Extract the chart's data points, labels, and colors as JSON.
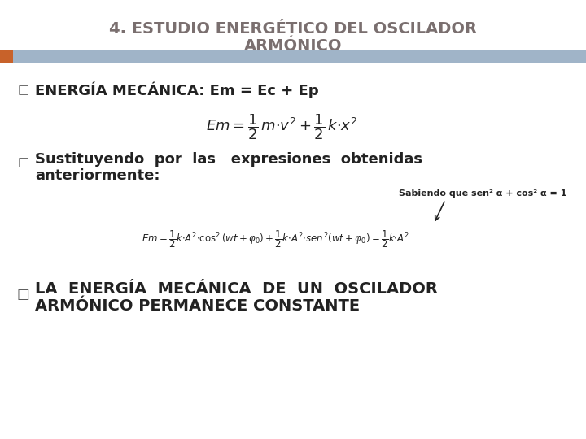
{
  "bg_color": "#ffffff",
  "title_line1": "4. ESTUDIO ENERGÉTICO DEL OSCILADOR",
  "title_line2": "ARMÓNICO",
  "title_color": "#7a6f6f",
  "title_fontsize": 14,
  "separator_bar_color": "#a0b4c8",
  "separator_bar_left_color": "#c8622a",
  "bullet_color": "#555555",
  "bullet_symbol": "□",
  "bullet1_text": "ENERGÍA MECÁNICA: Em = Ec + Ep",
  "formula1": "$Em = \\dfrac{1}{2}\\,m{\\cdot}v^2 + \\dfrac{1}{2}\\,k{\\cdot}x^2$",
  "bullet2_line1": "Sustituyendo  por  las   expresiones  obtenidas",
  "bullet2_line2": "anteriormente:",
  "note_text": "Sabiendo que sen² α + cos² α = 1",
  "formula2": "$Em = \\dfrac{1}{2}k{\\cdot}A^2{\\cdot}\\cos^2(wt+\\varphi_0)+\\dfrac{1}{2}k{\\cdot}A^2{\\cdot}sen^2(wt+\\varphi_0)=\\dfrac{1}{2}k{\\cdot}A^2$",
  "bullet3_line1": "LA  ENERGÍA  MECÁNICA  DE  UN  OSCILADOR",
  "bullet3_line2": "ARMÓNICO PERMANECE CONSTANTE",
  "text_color": "#222222",
  "formula_color": "#222222",
  "note_fontsize": 8,
  "bullet1_fontsize": 13,
  "bullet2_fontsize": 13,
  "bullet3_fontsize": 14,
  "formula1_fontsize": 13,
  "formula2_fontsize": 8.5
}
